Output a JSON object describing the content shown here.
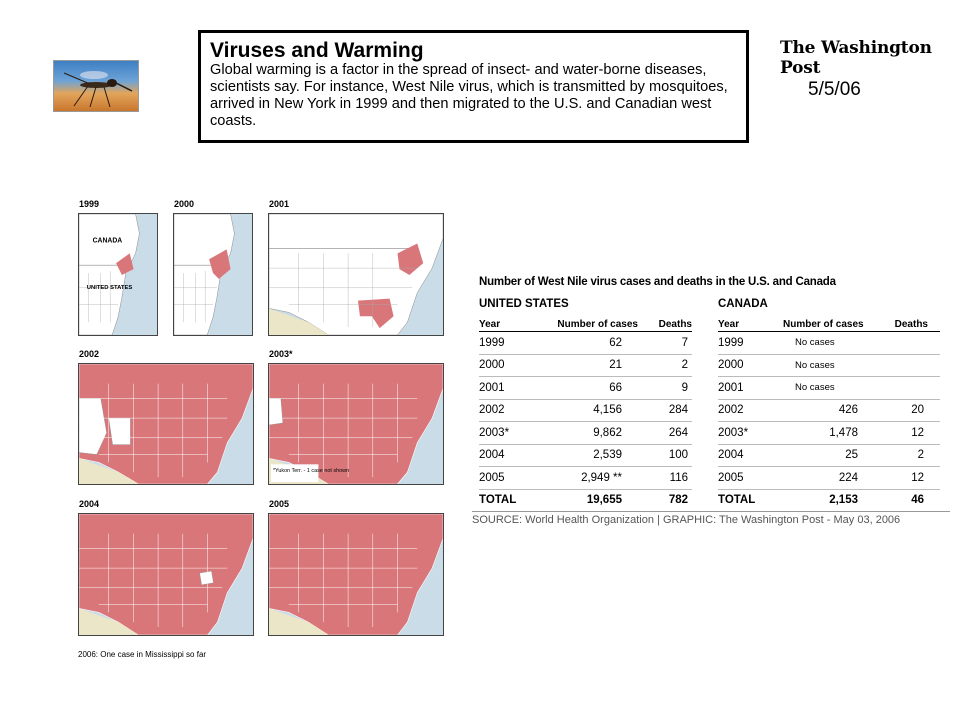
{
  "header": {
    "headline_title": "Viruses and Warming",
    "headline_body": "Global warming is a factor in the spread of insect- and water-borne diseases, scientists say. For instance, West Nile virus, which is transmitted by mosquitoes, arrived in New York in 1999 and then migrated to the U.S. and Canadian west coasts.",
    "publication": "The Washington Post",
    "date": "5/5/06",
    "image_icon": "mosquito-photo"
  },
  "maps": {
    "items": [
      {
        "year": "1999",
        "label_canada": "CANADA",
        "label_us": "UNITED STATES"
      },
      {
        "year": "2000"
      },
      {
        "year": "2001"
      },
      {
        "year": "2002"
      },
      {
        "year": "2003*",
        "note": "*Yukon Terr. - 1 case not shown"
      },
      {
        "year": "2004"
      },
      {
        "year": "2005"
      }
    ],
    "footnote": "2006: One case in Mississippi so far",
    "colors": {
      "affected": "#d9767a",
      "unaffected": "#ffffff",
      "water": "#c9dce8",
      "mexico": "#ece6c8"
    }
  },
  "table": {
    "title": "Number of West Nile virus cases and deaths in the U.S. and Canada",
    "us": {
      "country": "UNITED STATES",
      "headers": [
        "Year",
        "Number of cases",
        "Deaths"
      ],
      "rows": [
        [
          "1999",
          "62",
          "7"
        ],
        [
          "2000",
          "21",
          "2"
        ],
        [
          "2001",
          "66",
          "9"
        ],
        [
          "2002",
          "4,156",
          "284"
        ],
        [
          "2003*",
          "9,862",
          "264"
        ],
        [
          "2004",
          "2,539",
          "100"
        ],
        [
          "2005",
          "2,949 **",
          "116"
        ]
      ],
      "total": [
        "TOTAL",
        "19,655",
        "782"
      ]
    },
    "canada": {
      "country": "CANADA",
      "headers": [
        "Year",
        "Number of cases",
        "Deaths"
      ],
      "rows": [
        [
          "1999",
          "No cases",
          ""
        ],
        [
          "2000",
          "No cases",
          ""
        ],
        [
          "2001",
          "No cases",
          ""
        ],
        [
          "2002",
          "426",
          "20"
        ],
        [
          "2003*",
          "1,478",
          "12"
        ],
        [
          "2004",
          "25",
          "2"
        ],
        [
          "2005",
          "224",
          "12"
        ]
      ],
      "total": [
        "TOTAL",
        "2,153",
        "46"
      ]
    },
    "source": "SOURCE: World Health Organization | GRAPHIC: The Washington Post - May 03, 2006"
  }
}
